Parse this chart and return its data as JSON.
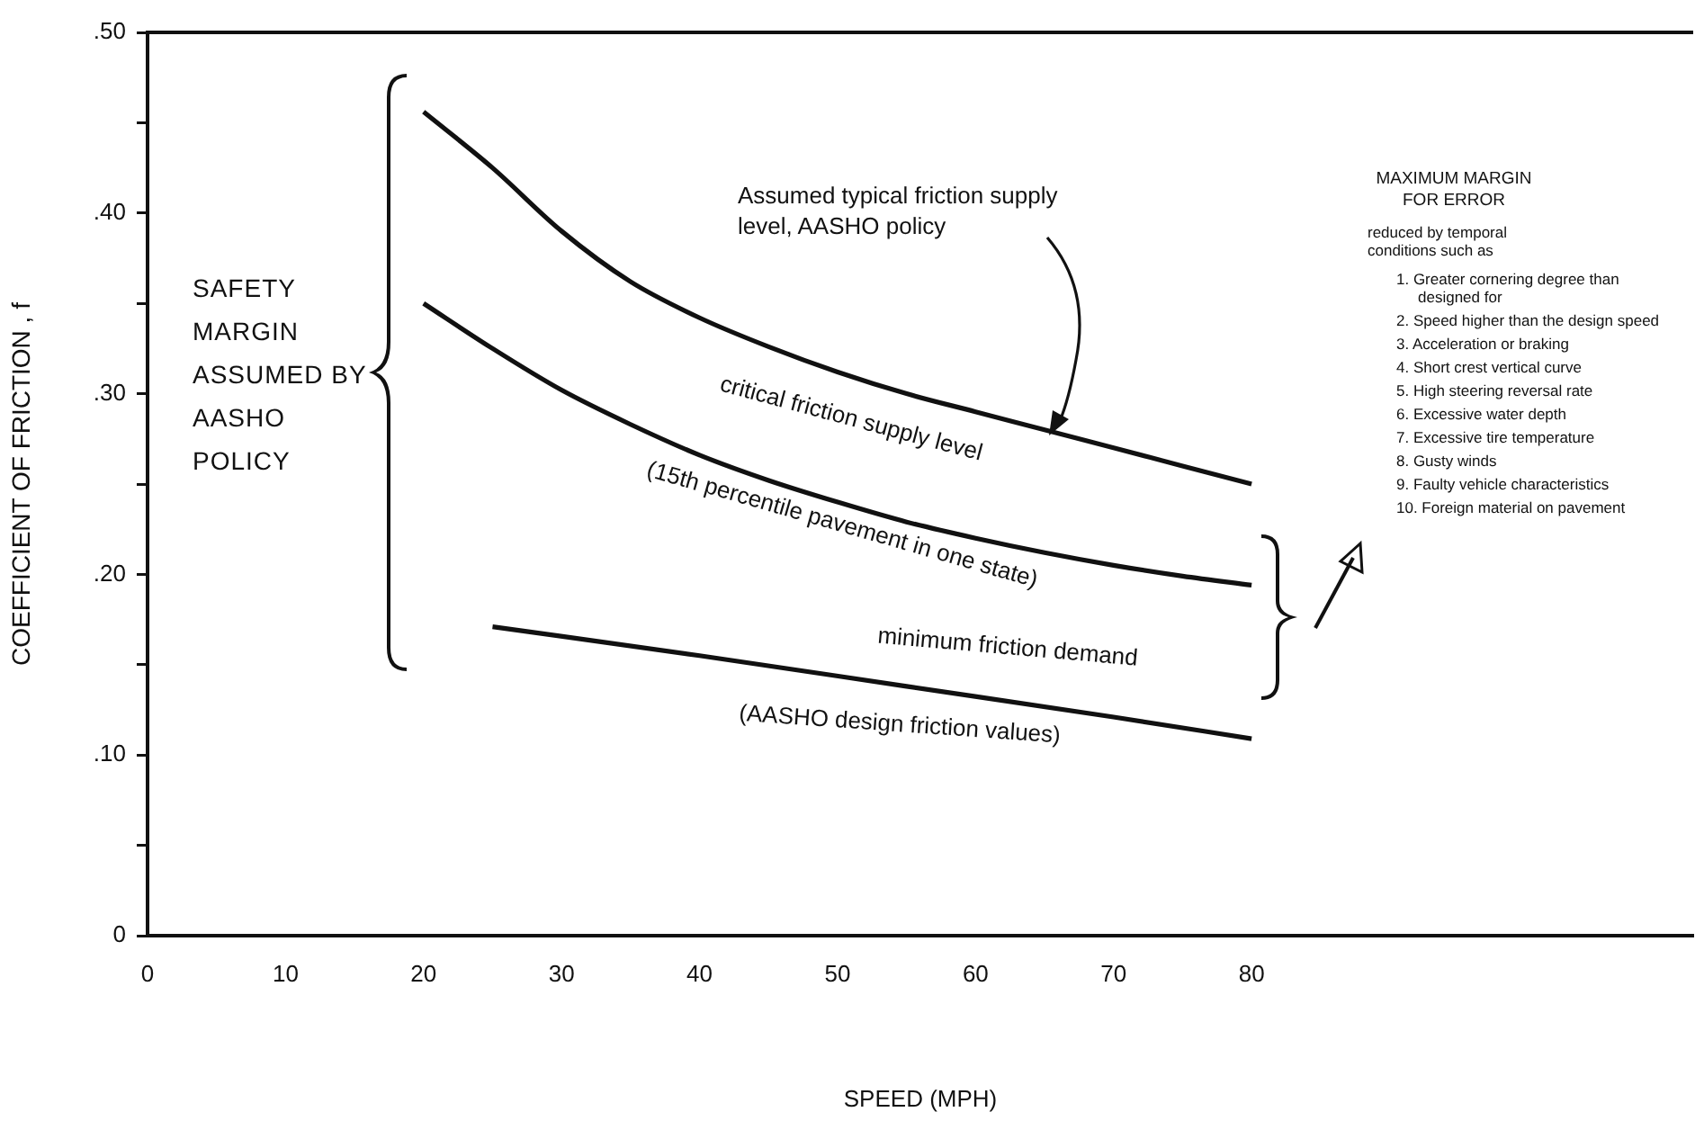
{
  "chart_data": {
    "type": "line",
    "xlabel": "SPEED (MPH)",
    "ylabel": "COEFFICIENT OF FRICTION , f",
    "xlim": [
      0,
      112
    ],
    "xticks": [
      0,
      10,
      20,
      30,
      40,
      50,
      60,
      70,
      80
    ],
    "ylim": [
      0,
      0.5
    ],
    "yticks": [
      0,
      {
        "value": 0.05,
        "label": null
      },
      {
        "value": 0.1,
        "label": ".10"
      },
      {
        "value": 0.15,
        "label": null
      },
      {
        "value": 0.2,
        "label": ".20"
      },
      {
        "value": 0.25,
        "label": null
      },
      {
        "value": 0.3,
        "label": ".30"
      },
      {
        "value": 0.35,
        "label": null
      },
      {
        "value": 0.4,
        "label": ".40"
      },
      {
        "value": 0.45,
        "label": null
      },
      {
        "value": 0.5,
        "label": ".50"
      }
    ],
    "grid": false,
    "legend": false,
    "marker": "none",
    "line_style": "solid",
    "series": [
      {
        "color": "#111111",
        "x": [
          20,
          25,
          30,
          35,
          40,
          45,
          50,
          55,
          60,
          65,
          70,
          75,
          80
        ],
        "values": [
          0.456,
          0.425,
          0.39,
          0.362,
          0.342,
          0.326,
          0.312,
          0.3,
          0.29,
          0.28,
          0.27,
          0.26,
          0.25
        ]
      },
      {
        "color": "#111111",
        "x": [
          20,
          25,
          30,
          35,
          40,
          45,
          50,
          55,
          60,
          65,
          70,
          75,
          80
        ],
        "values": [
          0.35,
          0.325,
          0.302,
          0.283,
          0.266,
          0.252,
          0.24,
          0.229,
          0.22,
          0.212,
          0.205,
          0.199,
          0.194
        ]
      },
      {
        "color": "#111111",
        "x": [
          25,
          40,
          55,
          70,
          80
        ],
        "values": [
          0.171,
          0.155,
          0.138,
          0.121,
          0.109
        ]
      }
    ],
    "annotations": [
      "Assumed typical friction supply level, AASHO policy",
      "SAFETY MARGIN ASSUMED BY AASHO POLICY",
      "MAXIMUM MARGIN FOR ERROR",
      "reduced by temporal conditions such as",
      "1. Greater cornering degree than designed for",
      "2. Speed higher than the design speed",
      "3. Acceleration or braking",
      "4. Short crest vertical curve",
      "5. High steering reversal rate",
      "6. Excessive water depth",
      "7. Excessive tire temperature",
      "8. Gusty winds",
      "9. Faulty vehicle characteristics",
      "10. Foreign material on pavement",
      "critical friction supply level",
      "(15th percentile pavement in one state)",
      "minimum friction demand",
      "(AASHO design friction values)"
    ]
  }
}
